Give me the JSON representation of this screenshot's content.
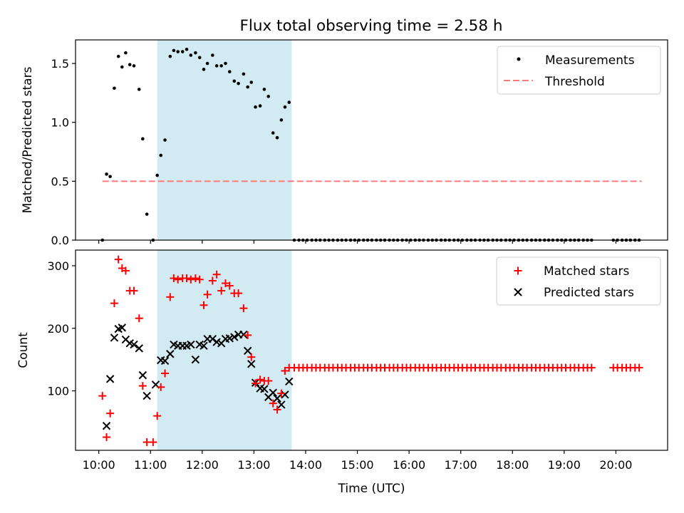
{
  "title": "Flux total observing time = 2.58 h",
  "chart_data": [
    {
      "type": "scatter",
      "name": "top",
      "ylabel": "Matched/Predicted stars",
      "xlim": [
        9.55,
        21.0
      ],
      "ylim": [
        0,
        1.7
      ],
      "yticks": [
        0.0,
        0.5,
        1.0,
        1.5
      ],
      "ytick_labels": [
        "0.0",
        "0.5",
        "1.0",
        "1.5"
      ],
      "shaded_region": [
        11.13,
        13.73
      ],
      "legend": {
        "position": "top-right",
        "entries": [
          "Measurements",
          "Threshold"
        ]
      },
      "threshold": {
        "name": "Threshold",
        "value": 0.5,
        "x_range": [
          10.07,
          20.5
        ],
        "color": "#ff7a7a"
      },
      "measurements": {
        "name": "Measurements",
        "x": [
          10.07,
          10.15,
          10.22,
          10.3,
          10.38,
          10.45,
          10.52,
          10.6,
          10.68,
          10.78,
          10.85,
          10.93,
          11.05,
          11.13,
          11.2,
          11.28,
          11.38,
          11.45,
          11.53,
          11.62,
          11.7,
          11.78,
          11.87,
          11.95,
          12.03,
          12.1,
          12.2,
          12.28,
          12.37,
          12.45,
          12.53,
          12.62,
          12.7,
          12.8,
          12.88,
          12.95,
          13.03,
          13.12,
          13.2,
          13.28,
          13.37,
          13.45,
          13.53,
          13.6,
          13.68,
          13.78,
          13.87,
          13.95,
          14.03,
          14.12,
          14.2,
          14.28,
          14.37,
          14.45,
          14.53,
          14.62,
          14.7,
          14.78,
          14.87,
          14.95,
          15.03,
          15.12,
          15.2,
          15.28,
          15.37,
          15.45,
          15.53,
          15.62,
          15.7,
          15.78,
          15.87,
          15.95,
          16.03,
          16.12,
          16.2,
          16.28,
          16.37,
          16.45,
          16.53,
          16.62,
          16.7,
          16.78,
          16.87,
          16.95,
          17.03,
          17.12,
          17.2,
          17.28,
          17.37,
          17.45,
          17.53,
          17.62,
          17.7,
          17.78,
          17.87,
          17.95,
          18.03,
          18.12,
          18.2,
          18.28,
          18.37,
          18.45,
          18.53,
          18.62,
          18.7,
          18.78,
          18.87,
          18.95,
          19.03,
          19.12,
          19.2,
          19.28,
          19.37,
          19.45,
          19.53,
          19.95,
          20.03,
          20.12,
          20.2,
          20.28,
          20.37,
          20.45
        ],
        "y": [
          0.0,
          0.56,
          0.54,
          1.29,
          1.56,
          1.47,
          1.59,
          1.49,
          1.48,
          1.28,
          0.86,
          0.22,
          0.0,
          0.55,
          0.72,
          0.85,
          1.56,
          1.61,
          1.6,
          1.6,
          1.62,
          1.57,
          1.59,
          1.55,
          1.45,
          1.5,
          1.57,
          1.48,
          1.48,
          1.5,
          1.43,
          1.35,
          1.33,
          1.41,
          1.3,
          1.34,
          1.13,
          1.14,
          1.28,
          1.22,
          0.91,
          0.87,
          1.02,
          1.13,
          1.17,
          0.0,
          0.0,
          0.0,
          0.0,
          0.0,
          0.0,
          0.0,
          0.0,
          0.0,
          0.0,
          0.0,
          0.0,
          0.0,
          0.0,
          0.0,
          0.0,
          0.0,
          0.0,
          0.0,
          0.0,
          0.0,
          0.0,
          0.0,
          0.0,
          0.0,
          0.0,
          0.0,
          0.0,
          0.0,
          0.0,
          0.0,
          0.0,
          0.0,
          0.0,
          0.0,
          0.0,
          0.0,
          0.0,
          0.0,
          0.0,
          0.0,
          0.0,
          0.0,
          0.0,
          0.0,
          0.0,
          0.0,
          0.0,
          0.0,
          0.0,
          0.0,
          0.0,
          0.0,
          0.0,
          0.0,
          0.0,
          0.0,
          0.0,
          0.0,
          0.0,
          0.0,
          0.0,
          0.0,
          0.0,
          0.0,
          0.0,
          0.0,
          0.0,
          0.0,
          0.0,
          0.0,
          0.0,
          0.0,
          0.0,
          0.0,
          0.0,
          0.0
        ]
      }
    },
    {
      "type": "scatter",
      "name": "bottom",
      "ylabel": "Count",
      "xlabel": "Time (UTC)",
      "xlim": [
        9.55,
        21.0
      ],
      "ylim": [
        5,
        325
      ],
      "yticks": [
        100,
        200,
        300
      ],
      "ytick_labels": [
        "100",
        "200",
        "300"
      ],
      "xticks": [
        10,
        11,
        12,
        13,
        14,
        15,
        16,
        17,
        18,
        19,
        20
      ],
      "xtick_labels": [
        "10:00",
        "11:00",
        "12:00",
        "13:00",
        "14:00",
        "15:00",
        "16:00",
        "17:00",
        "18:00",
        "19:00",
        "20:00"
      ],
      "shaded_region": [
        11.13,
        13.73
      ],
      "legend": {
        "position": "top-right",
        "entries": [
          "Matched stars",
          "Predicted stars"
        ]
      },
      "matched": {
        "name": "Matched stars",
        "color": "#ff0000",
        "x": [
          10.07,
          10.15,
          10.22,
          10.3,
          10.38,
          10.45,
          10.52,
          10.6,
          10.68,
          10.78,
          10.85,
          10.93,
          11.05,
          11.13,
          11.2,
          11.28,
          11.38,
          11.45,
          11.53,
          11.62,
          11.7,
          11.78,
          11.87,
          11.95,
          12.03,
          12.1,
          12.2,
          12.28,
          12.37,
          12.45,
          12.53,
          12.62,
          12.7,
          12.8,
          12.88,
          12.95,
          13.03,
          13.12,
          13.2,
          13.28,
          13.37,
          13.45,
          13.53,
          13.6,
          13.68,
          13.78,
          13.87,
          13.95,
          14.03,
          14.12,
          14.2,
          14.28,
          14.37,
          14.45,
          14.53,
          14.62,
          14.7,
          14.78,
          14.87,
          14.95,
          15.03,
          15.12,
          15.2,
          15.28,
          15.37,
          15.45,
          15.53,
          15.62,
          15.7,
          15.78,
          15.87,
          15.95,
          16.03,
          16.12,
          16.2,
          16.28,
          16.37,
          16.45,
          16.53,
          16.62,
          16.7,
          16.78,
          16.87,
          16.95,
          17.03,
          17.12,
          17.2,
          17.28,
          17.37,
          17.45,
          17.53,
          17.62,
          17.7,
          17.78,
          17.87,
          17.95,
          18.03,
          18.12,
          18.2,
          18.28,
          18.37,
          18.45,
          18.53,
          18.62,
          18.7,
          18.78,
          18.87,
          18.95,
          19.03,
          19.12,
          19.2,
          19.28,
          19.37,
          19.45,
          19.53,
          19.95,
          20.03,
          20.12,
          20.2,
          20.28,
          20.37,
          20.45
        ],
        "y": [
          92,
          26,
          64,
          240,
          310,
          296,
          292,
          260,
          260,
          216,
          108,
          18,
          18,
          60,
          106,
          128,
          250,
          280,
          278,
          280,
          280,
          278,
          280,
          278,
          237,
          254,
          276,
          286,
          260,
          272,
          268,
          256,
          256,
          232,
          189,
          154,
          112,
          118,
          116,
          116,
          80,
          70,
          96,
          132,
          137,
          137,
          137,
          137,
          137,
          137,
          137,
          137,
          137,
          137,
          137,
          137,
          137,
          137,
          137,
          137,
          137,
          137,
          137,
          137,
          137,
          137,
          137,
          137,
          137,
          137,
          137,
          137,
          137,
          137,
          137,
          137,
          137,
          137,
          137,
          137,
          137,
          137,
          137,
          137,
          137,
          137,
          137,
          137,
          137,
          137,
          137,
          137,
          137,
          137,
          137,
          137,
          137,
          137,
          137,
          137,
          137,
          137,
          137,
          137,
          137,
          137,
          137,
          137,
          137,
          137,
          137,
          137,
          137,
          137,
          137,
          137,
          137,
          137,
          137,
          137,
          137,
          137
        ]
      },
      "predicted": {
        "name": "Predicted stars",
        "color": "#000000",
        "x": [
          10.15,
          10.22,
          10.3,
          10.38,
          10.45,
          10.52,
          10.6,
          10.68,
          10.78,
          10.85,
          10.93,
          11.1,
          11.2,
          11.28,
          11.38,
          11.45,
          11.53,
          11.62,
          11.7,
          11.78,
          11.87,
          11.95,
          12.03,
          12.1,
          12.2,
          12.28,
          12.37,
          12.45,
          12.53,
          12.62,
          12.7,
          12.8,
          12.88,
          12.95,
          13.03,
          13.12,
          13.2,
          13.28,
          13.37,
          13.45,
          13.53,
          13.6,
          13.68
        ],
        "y": [
          44,
          119,
          185,
          199,
          201,
          182,
          176,
          174,
          168,
          125,
          92,
          110,
          149,
          148,
          159,
          174,
          172,
          172,
          172,
          174,
          150,
          174,
          172,
          183,
          183,
          178,
          176,
          183,
          184,
          186,
          190,
          190,
          164,
          143,
          113,
          104,
          103,
          90,
          97,
          88,
          78,
          94,
          115
        ]
      }
    }
  ]
}
